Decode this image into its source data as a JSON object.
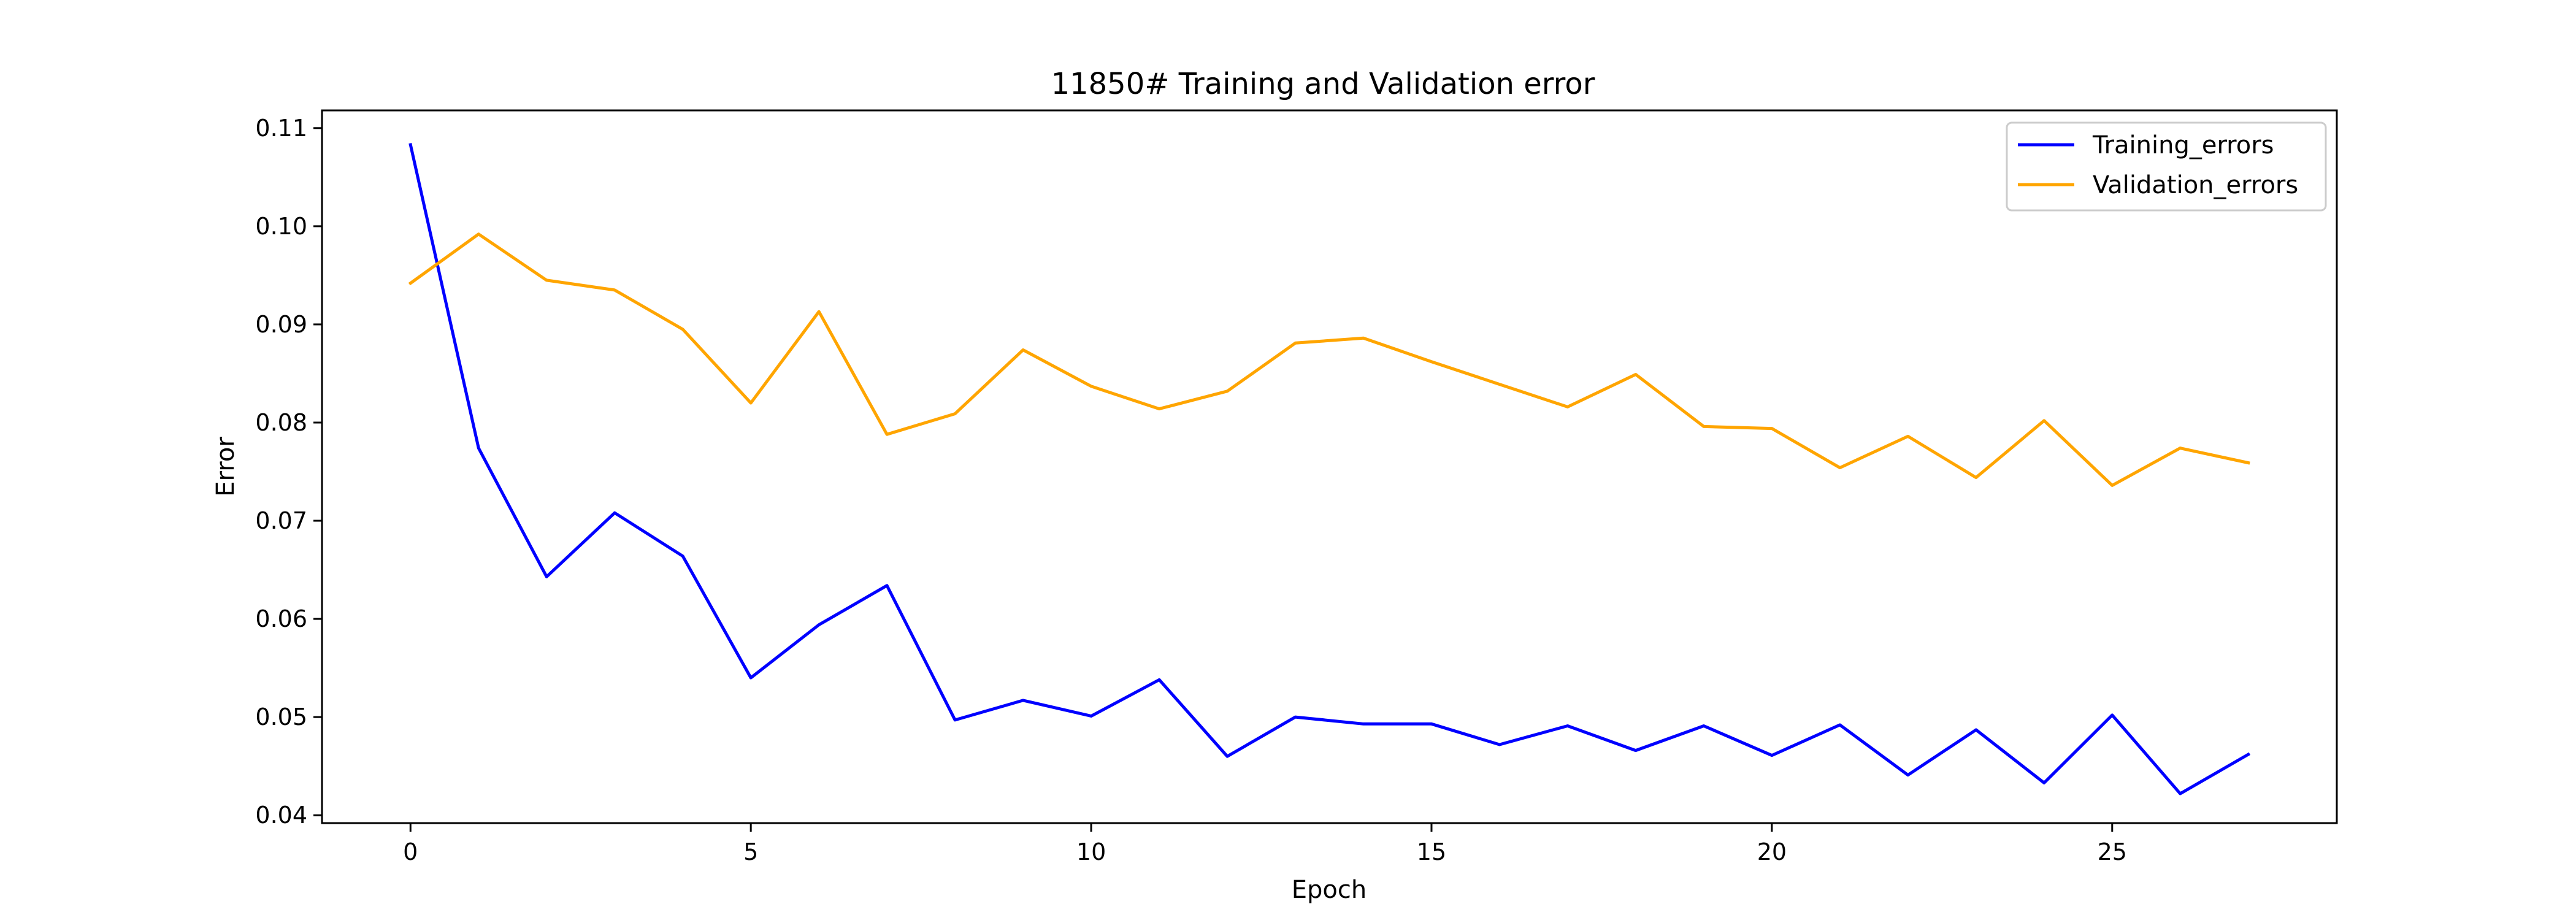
{
  "chart_data": {
    "type": "line",
    "title": "11850# Training and Validation error",
    "xlabel": "Epoch",
    "ylabel": "Error",
    "xlim": [
      -1.3,
      28.3
    ],
    "ylim": [
      0.0392,
      0.1118
    ],
    "xticks": [
      0,
      5,
      10,
      15,
      20,
      25
    ],
    "xtick_labels": [
      "0",
      "5",
      "10",
      "15",
      "20",
      "25"
    ],
    "yticks": [
      0.04,
      0.05,
      0.06,
      0.07,
      0.08,
      0.09,
      0.1,
      0.11
    ],
    "ytick_labels": [
      "0.04",
      "0.05",
      "0.06",
      "0.07",
      "0.08",
      "0.09",
      "0.10",
      "0.11"
    ],
    "grid": false,
    "legend_position": "upper right",
    "x": [
      0,
      1,
      2,
      3,
      4,
      5,
      6,
      7,
      8,
      9,
      10,
      11,
      12,
      13,
      14,
      15,
      16,
      17,
      18,
      19,
      20,
      21,
      22,
      23,
      24,
      25,
      26,
      27
    ],
    "series": [
      {
        "name": "Training_errors",
        "color": "#0000ff",
        "values": [
          0.1083,
          0.0774,
          0.0643,
          0.0708,
          0.0664,
          0.054,
          0.0594,
          0.0634,
          0.0497,
          0.0517,
          0.0501,
          0.0538,
          0.046,
          0.05,
          0.0493,
          0.0493,
          0.0472,
          0.0491,
          0.0466,
          0.0491,
          0.0461,
          0.0492,
          0.0441,
          0.0487,
          0.0433,
          0.0502,
          0.0422,
          0.0462
        ]
      },
      {
        "name": "Validation_errors",
        "color": "#ffa500",
        "values": [
          0.0942,
          0.0992,
          0.0945,
          0.0935,
          0.0895,
          0.082,
          0.0913,
          0.0788,
          0.0809,
          0.0874,
          0.0837,
          0.0814,
          0.0832,
          0.0881,
          0.0886,
          0.0862,
          0.0839,
          0.0816,
          0.0849,
          0.0796,
          0.0794,
          0.0754,
          0.0786,
          0.0744,
          0.0802,
          0.0736,
          0.0774,
          0.0759
        ]
      }
    ]
  }
}
